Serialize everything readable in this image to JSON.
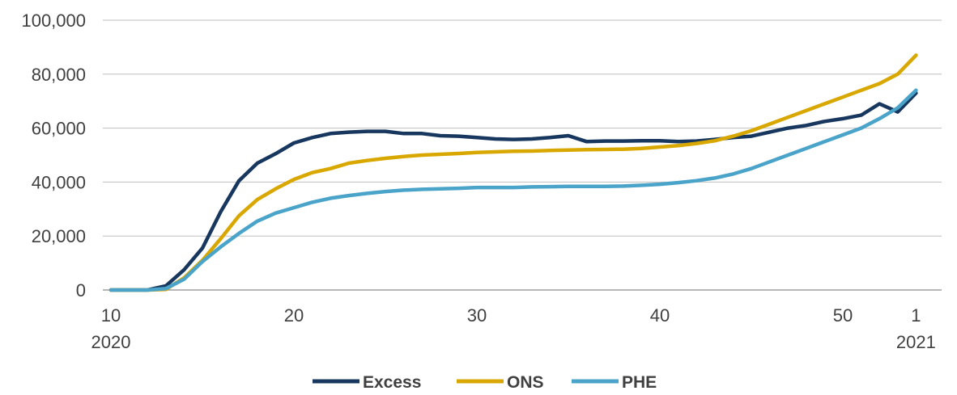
{
  "chart_data": {
    "type": "line",
    "title": "",
    "xlabel": "",
    "ylabel": "",
    "ylim": [
      0,
      100000
    ],
    "xlim": [
      10,
      1
    ],
    "grid": true,
    "legend_position": "bottom",
    "y_ticks": [
      "0",
      "20,000",
      "40,000",
      "60,000",
      "80,000",
      "100,000"
    ],
    "x_ticks": [
      {
        "week": "10",
        "year": "2020"
      },
      {
        "week": "20",
        "year": ""
      },
      {
        "week": "30",
        "year": ""
      },
      {
        "week": "40",
        "year": ""
      },
      {
        "week": "50",
        "year": ""
      },
      {
        "week": "1",
        "year": "2021"
      }
    ],
    "x_weeks": [
      10,
      11,
      12,
      13,
      14,
      15,
      16,
      17,
      18,
      19,
      20,
      21,
      22,
      23,
      24,
      25,
      26,
      27,
      28,
      29,
      30,
      31,
      32,
      33,
      34,
      35,
      36,
      37,
      38,
      39,
      40,
      41,
      42,
      43,
      44,
      45,
      46,
      47,
      48,
      49,
      50,
      51,
      52,
      53,
      1
    ],
    "series": [
      {
        "name": "Excess",
        "color": "#17375e",
        "values": [
          0,
          0,
          0,
          1500,
          7500,
          15500,
          29000,
          40500,
          47000,
          50500,
          54500,
          56500,
          58000,
          58500,
          58800,
          58800,
          58000,
          58000,
          57200,
          57000,
          56500,
          56000,
          55800,
          56000,
          56500,
          57200,
          55000,
          55200,
          55200,
          55300,
          55300,
          55000,
          55200,
          55800,
          56500,
          57000,
          58500,
          60000,
          61000,
          62500,
          63500,
          64800,
          69000,
          66000,
          73000
        ]
      },
      {
        "name": "ONS",
        "color": "#d9a800",
        "values": [
          0,
          0,
          0,
          200,
          4500,
          11000,
          19000,
          27500,
          33500,
          37500,
          41000,
          43500,
          45000,
          47000,
          48000,
          48800,
          49500,
          50000,
          50300,
          50600,
          51000,
          51200,
          51400,
          51500,
          51700,
          51900,
          52000,
          52100,
          52200,
          52500,
          53000,
          53500,
          54300,
          55300,
          57000,
          59000,
          61500,
          64000,
          66500,
          69000,
          71500,
          74000,
          76500,
          80000,
          87000
        ]
      },
      {
        "name": "PHE",
        "color": "#4aa3c8",
        "values": [
          0,
          0,
          0,
          500,
          4000,
          10500,
          16000,
          21000,
          25500,
          28500,
          30500,
          32500,
          34000,
          35000,
          35800,
          36500,
          37000,
          37300,
          37500,
          37700,
          38000,
          38000,
          38000,
          38200,
          38300,
          38400,
          38400,
          38400,
          38500,
          38800,
          39200,
          39800,
          40500,
          41500,
          43000,
          45000,
          47500,
          50000,
          52500,
          55000,
          57500,
          60000,
          63500,
          67500,
          74000
        ]
      }
    ]
  }
}
